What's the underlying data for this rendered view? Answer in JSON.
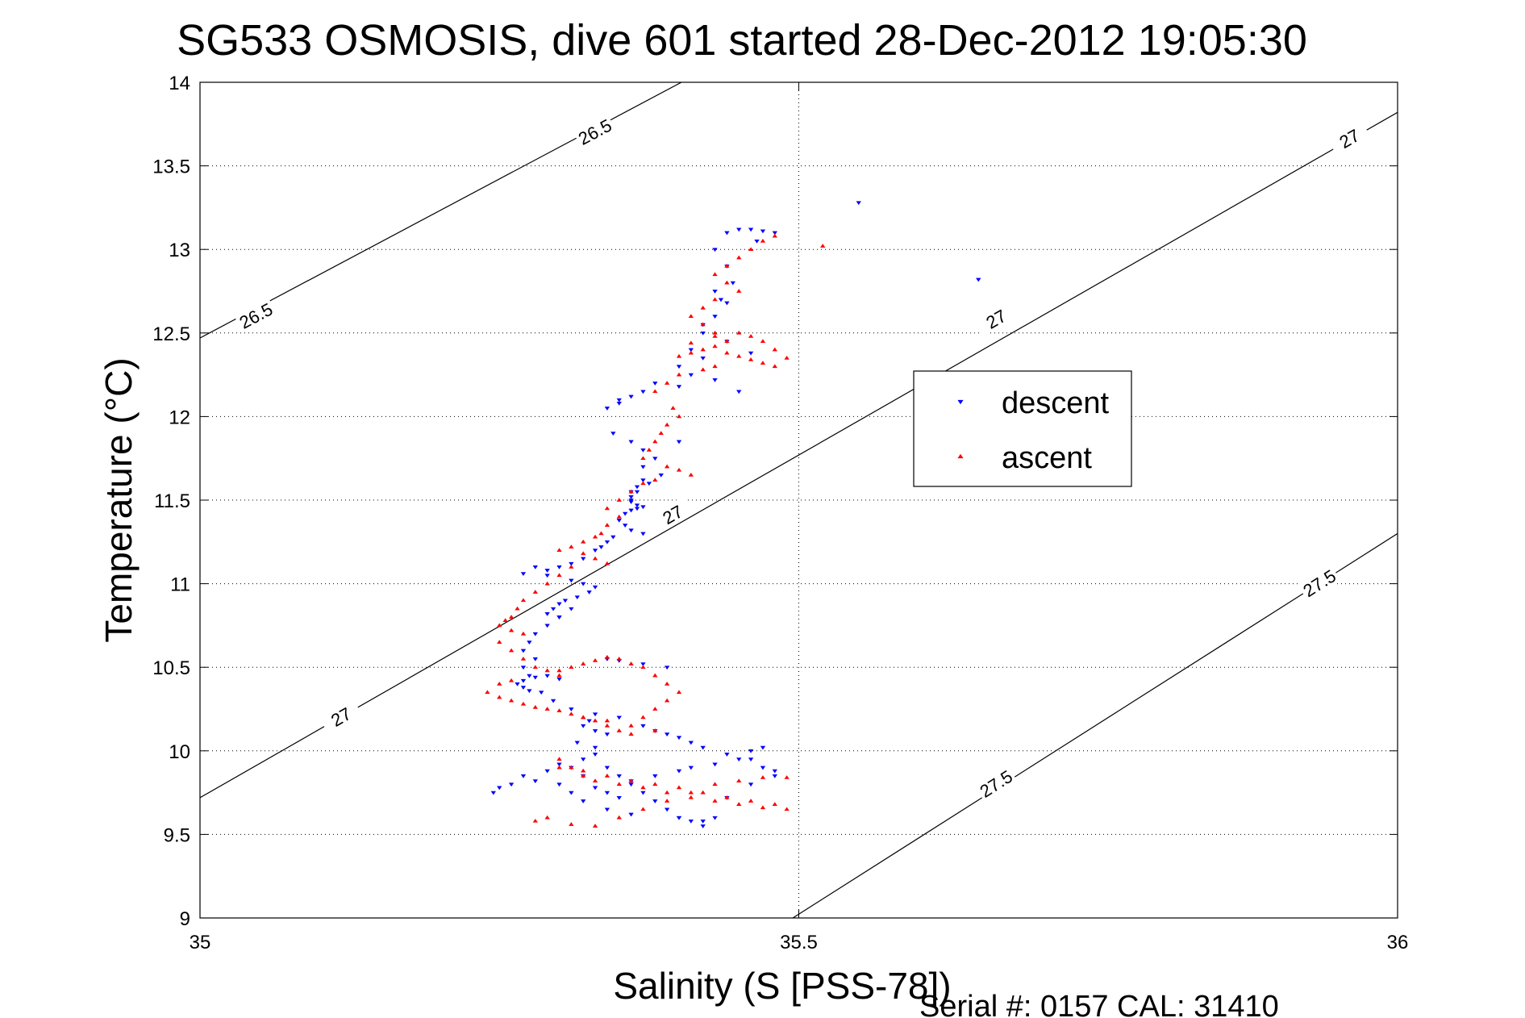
{
  "chart_data": {
    "type": "scatter",
    "title": "SG533 OSMOSIS, dive 601 started 28-Dec-2012 19:05:30",
    "xlabel": "Salinity (S [PSS-78])",
    "ylabel": "Temperature (°C)",
    "xlim": [
      35,
      36
    ],
    "ylim": [
      9,
      14
    ],
    "x_ticks": [
      "35",
      "35.5",
      "36"
    ],
    "y_ticks": [
      "9",
      "9.5",
      "10",
      "10.5",
      "11",
      "11.5",
      "12",
      "12.5",
      "13",
      "13.5",
      "14"
    ],
    "grid": true,
    "legend": {
      "position": "right",
      "entries": [
        {
          "name": "descent",
          "marker": "triangle-down",
          "color": "#0000ff"
        },
        {
          "name": "ascent",
          "marker": "triangle-up",
          "color": "#ff0000"
        }
      ]
    },
    "contours": [
      {
        "label": "26.5",
        "points": [
          [
            35.0,
            12.47
          ],
          [
            35.402,
            14.0
          ]
        ],
        "label_positions": [
          [
            35.047,
            12.6
          ],
          [
            35.33,
            13.7
          ]
        ]
      },
      {
        "label": "27",
        "points": [
          [
            35.0,
            9.72
          ],
          [
            36.0,
            13.82
          ]
        ],
        "label_positions": [
          [
            35.118,
            10.2
          ],
          [
            35.395,
            11.41
          ],
          [
            35.665,
            12.58
          ],
          [
            35.96,
            13.66
          ]
        ]
      },
      {
        "label": "27.5",
        "points": [
          [
            35.495,
            9.0
          ],
          [
            36.0,
            11.3
          ]
        ],
        "label_positions": [
          [
            35.665,
            9.8
          ],
          [
            35.935,
            11.0
          ]
        ]
      }
    ],
    "series": [
      {
        "name": "descent",
        "color": "#0000ff",
        "marker": "triangle-down",
        "x": [
          35.44,
          35.45,
          35.46,
          35.47,
          35.465,
          35.48,
          35.43,
          35.44,
          35.445,
          35.43,
          35.435,
          35.44,
          35.43,
          35.42,
          35.42,
          35.44,
          35.46,
          35.41,
          35.42,
          35.4,
          35.41,
          35.38,
          35.4,
          35.43,
          35.45,
          35.37,
          35.36,
          35.35,
          35.34,
          35.35,
          35.345,
          35.36,
          35.37,
          35.38,
          35.37,
          35.4,
          35.385,
          35.375,
          35.365,
          35.36,
          35.365,
          35.37,
          35.365,
          35.36,
          35.36,
          35.36,
          35.365,
          35.37,
          35.36,
          35.355,
          35.35,
          35.355,
          35.36,
          35.37,
          35.345,
          35.34,
          35.335,
          35.33,
          35.32,
          35.31,
          35.3,
          35.29,
          35.31,
          35.32,
          35.33,
          35.325,
          35.315,
          35.305,
          35.3,
          35.295,
          35.29,
          35.3,
          35.29,
          35.28,
          35.275,
          35.27,
          35.28,
          35.27,
          35.275,
          35.27,
          35.265,
          35.27,
          35.275,
          35.28,
          35.29,
          35.3,
          35.285,
          35.295,
          35.31,
          35.33,
          35.35,
          35.37,
          35.38,
          35.39,
          35.4,
          35.41,
          35.42,
          35.39,
          35.37,
          35.35,
          35.34,
          35.325,
          35.32,
          35.33,
          35.34,
          35.315,
          35.33,
          35.31,
          35.32,
          35.3,
          35.31,
          35.32,
          35.34,
          35.36,
          35.4,
          35.42,
          35.44,
          35.46,
          35.48,
          35.47,
          35.45,
          35.44,
          35.46,
          35.47,
          35.48,
          35.27,
          35.28,
          35.26,
          35.25,
          35.245,
          35.29,
          35.3,
          35.32,
          35.33,
          35.34,
          35.35,
          35.36,
          35.37,
          35.38,
          35.39,
          35.4,
          35.41,
          35.42,
          35.43,
          35.35,
          35.34,
          35.33,
          35.36,
          35.38,
          35.4,
          35.41,
          35.43,
          35.46,
          35.29,
          35.28,
          35.27,
          35.3,
          35.31,
          35.55,
          35.65
        ],
        "y": [
          13.1,
          13.12,
          13.12,
          13.11,
          13.05,
          13.1,
          13.0,
          12.9,
          12.8,
          12.75,
          12.7,
          12.68,
          12.6,
          12.55,
          12.5,
          12.45,
          12.38,
          12.4,
          12.35,
          12.3,
          12.25,
          12.2,
          12.18,
          12.22,
          12.15,
          12.15,
          12.12,
          12.1,
          12.05,
          12.08,
          11.9,
          11.85,
          11.8,
          11.75,
          11.7,
          11.85,
          11.65,
          11.6,
          11.55,
          11.5,
          11.45,
          11.62,
          11.58,
          11.55,
          11.52,
          11.49,
          11.47,
          11.46,
          11.44,
          11.42,
          11.38,
          11.35,
          11.32,
          11.3,
          11.28,
          11.25,
          11.22,
          11.2,
          11.15,
          11.12,
          11.1,
          11.05,
          11.02,
          11.0,
          10.98,
          10.95,
          10.92,
          10.9,
          10.88,
          10.85,
          10.82,
          10.8,
          10.75,
          10.7,
          10.65,
          10.6,
          10.55,
          10.5,
          10.45,
          10.42,
          10.4,
          10.38,
          10.36,
          10.44,
          10.45,
          10.43,
          10.35,
          10.3,
          10.25,
          10.22,
          10.2,
          10.15,
          10.12,
          10.1,
          10.08,
          10.05,
          10.02,
          10.5,
          10.52,
          10.54,
          10.55,
          10.18,
          10.15,
          10.12,
          10.1,
          10.05,
          10.02,
          9.9,
          9.85,
          9.8,
          9.75,
          9.7,
          9.65,
          9.62,
          9.6,
          9.58,
          9.72,
          9.8,
          9.85,
          9.9,
          9.95,
          9.98,
          10.0,
          10.02,
          9.88,
          9.85,
          9.82,
          9.8,
          9.78,
          9.75,
          9.88,
          9.92,
          9.95,
          9.98,
          9.9,
          9.85,
          9.8,
          9.75,
          9.7,
          9.65,
          9.6,
          9.58,
          9.55,
          9.6,
          9.72,
          9.75,
          9.78,
          9.82,
          9.85,
          9.88,
          9.9,
          9.92,
          9.95,
          11.08,
          11.1,
          11.06,
          10.8,
          10.85,
          13.28,
          12.82
        ]
      },
      {
        "name": "ascent",
        "color": "#ff0000",
        "marker": "triangle-up",
        "x": [
          35.48,
          35.47,
          35.46,
          35.45,
          35.44,
          35.43,
          35.44,
          35.45,
          35.43,
          35.42,
          35.41,
          35.42,
          35.43,
          35.44,
          35.43,
          35.42,
          35.41,
          35.4,
          35.41,
          35.43,
          35.45,
          35.46,
          35.47,
          35.48,
          35.49,
          35.48,
          35.47,
          35.46,
          35.45,
          35.44,
          35.43,
          35.42,
          35.4,
          35.39,
          35.38,
          35.395,
          35.4,
          35.39,
          35.385,
          35.38,
          35.375,
          35.37,
          35.39,
          35.4,
          35.41,
          35.38,
          35.37,
          35.36,
          35.35,
          35.34,
          35.35,
          35.34,
          35.335,
          35.33,
          35.32,
          35.31,
          35.3,
          35.32,
          35.33,
          35.34,
          35.31,
          35.3,
          35.29,
          35.28,
          35.27,
          35.265,
          35.26,
          35.255,
          35.25,
          35.26,
          35.27,
          35.25,
          35.26,
          35.27,
          35.28,
          35.29,
          35.3,
          35.26,
          35.25,
          35.24,
          35.25,
          35.26,
          35.27,
          35.28,
          35.29,
          35.3,
          35.31,
          35.32,
          35.33,
          35.34,
          35.35,
          35.36,
          35.37,
          35.38,
          35.39,
          35.4,
          35.39,
          35.38,
          35.37,
          35.36,
          35.35,
          35.34,
          35.33,
          35.32,
          35.31,
          35.3,
          35.32,
          35.34,
          35.36,
          35.38,
          35.3,
          35.31,
          35.32,
          35.33,
          35.35,
          35.37,
          35.39,
          35.41,
          35.43,
          35.45,
          35.47,
          35.49,
          35.48,
          35.46,
          35.44,
          35.42,
          35.4,
          35.38,
          35.36,
          35.34,
          35.32,
          35.3,
          35.29,
          35.28,
          35.31,
          35.33,
          35.35,
          35.37,
          35.39,
          35.41,
          35.43,
          35.45,
          35.47,
          35.49,
          35.52
        ],
        "y": [
          13.08,
          13.05,
          13.0,
          12.95,
          12.9,
          12.85,
          12.8,
          12.75,
          12.7,
          12.65,
          12.6,
          12.55,
          12.5,
          12.45,
          12.42,
          12.4,
          12.38,
          12.36,
          12.44,
          12.48,
          12.5,
          12.48,
          12.45,
          12.4,
          12.35,
          12.3,
          12.32,
          12.34,
          12.36,
          12.38,
          12.3,
          12.28,
          12.25,
          12.2,
          12.15,
          12.05,
          12.0,
          11.95,
          11.9,
          11.85,
          11.8,
          11.75,
          11.7,
          11.68,
          11.65,
          11.62,
          11.6,
          11.55,
          11.5,
          11.45,
          11.4,
          11.35,
          11.3,
          11.28,
          11.25,
          11.22,
          11.2,
          11.18,
          11.15,
          11.12,
          11.1,
          11.05,
          11.0,
          10.95,
          10.9,
          10.85,
          10.8,
          10.78,
          10.75,
          10.72,
          10.7,
          10.65,
          10.6,
          10.55,
          10.5,
          10.48,
          10.45,
          10.42,
          10.4,
          10.35,
          10.32,
          10.3,
          10.28,
          10.26,
          10.25,
          10.24,
          10.22,
          10.2,
          10.18,
          10.15,
          10.12,
          10.1,
          10.2,
          10.25,
          10.3,
          10.35,
          10.4,
          10.45,
          10.5,
          10.52,
          10.55,
          10.56,
          10.54,
          10.52,
          10.5,
          10.48,
          10.2,
          10.18,
          10.15,
          10.12,
          9.95,
          9.9,
          9.85,
          9.82,
          9.8,
          9.78,
          9.75,
          9.72,
          9.7,
          9.68,
          9.66,
          9.65,
          9.68,
          9.7,
          9.72,
          9.75,
          9.78,
          9.8,
          9.82,
          9.85,
          9.88,
          9.9,
          9.6,
          9.58,
          9.56,
          9.55,
          9.6,
          9.65,
          9.7,
          9.75,
          9.8,
          9.82,
          9.84,
          9.84,
          13.02
        ]
      }
    ]
  },
  "footer": {
    "serial_text": "Serial #: 0157  CAL: 31410"
  }
}
